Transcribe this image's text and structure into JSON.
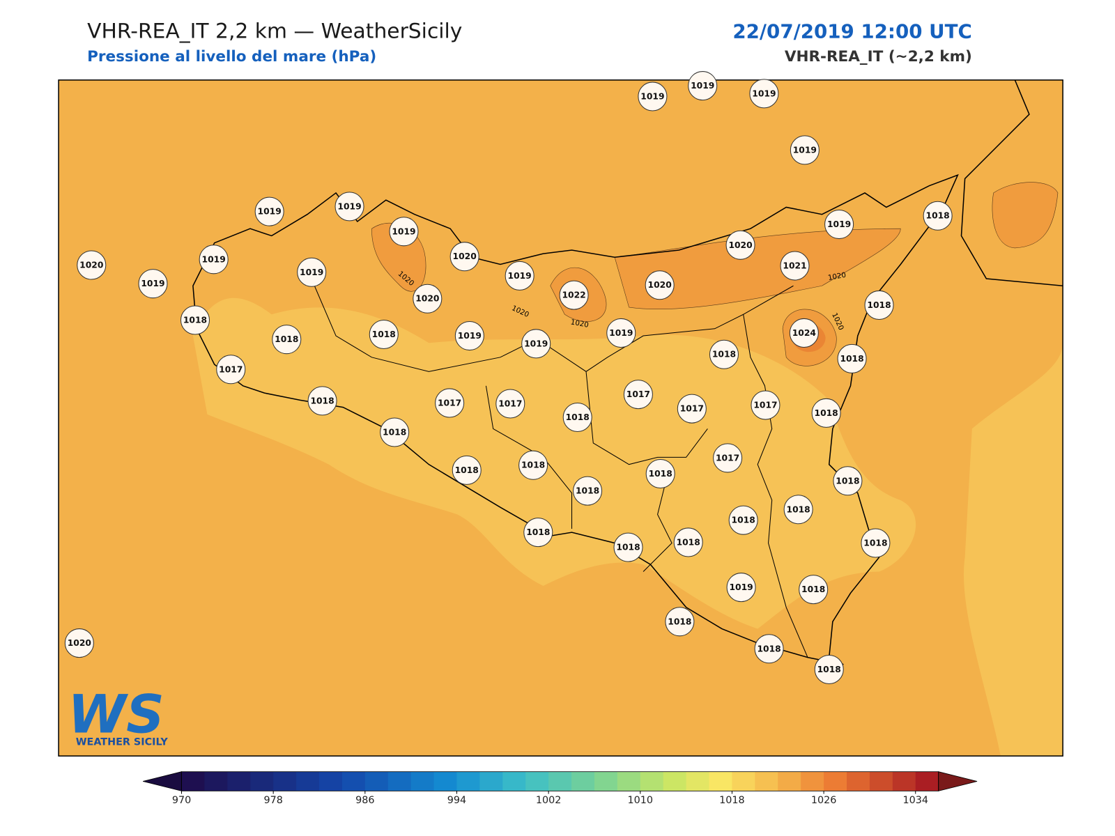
{
  "header": {
    "title": "VHR-REA_IT 2,2 km — WeatherSicily",
    "subtitle": "Pressione al livello del mare (hPa)",
    "datetime": "22/07/2019 12:00 UTC",
    "model": "VHR-REA_IT (~2,2 km)"
  },
  "stations": [
    1019,
    1019,
    1019,
    1019,
    1019,
    1019,
    1019,
    1020,
    1020,
    1019,
    1019,
    1019,
    1019,
    1020,
    1022,
    1020,
    1020,
    1021,
    1019,
    1018,
    1018,
    1018,
    1018,
    1018,
    1019,
    1019,
    1019,
    1024,
    1018,
    1018,
    1017,
    1018,
    1017,
    1017,
    1018,
    1017,
    1017,
    1017,
    1018,
    1018,
    1018,
    1018,
    1018,
    1018,
    1017,
    1018,
    1018,
    1018,
    1018,
    1018,
    1018,
    1018,
    1019,
    1018,
    1018,
    1018,
    1018,
    1020
  ],
  "contour_labels": [
    "1020",
    "1020",
    "1020",
    "1020",
    "1020"
  ],
  "colorbar": {
    "clim": [
      970,
      1036
    ],
    "ticks": [
      970,
      978,
      986,
      994,
      1002,
      1010,
      1018,
      1026,
      1034
    ]
  },
  "logo": {
    "mark": "WS",
    "name": "WEATHER SICILY"
  }
}
